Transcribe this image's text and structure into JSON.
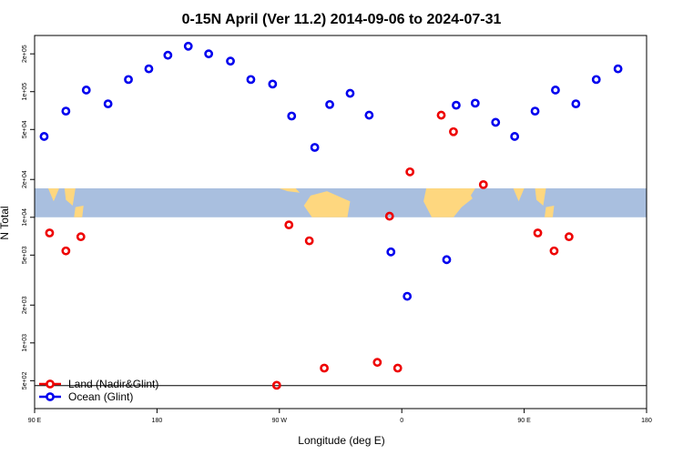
{
  "chart_data": {
    "type": "scatter",
    "title": "0-15N April (Ver 11.2)   2014-09-06 to 2024-07-31",
    "xlabel": "Longitude (deg E)",
    "ylabel": "N Total",
    "x_ticks": [
      {
        "value": 90,
        "label": "90 E"
      },
      {
        "value": 180,
        "label": "180"
      },
      {
        "value": 270,
        "label": "90 W"
      },
      {
        "value": 360,
        "label": "0"
      },
      {
        "value": 450,
        "label": "90 E"
      },
      {
        "value": 540,
        "label": "180"
      }
    ],
    "xlim": [
      90,
      540
    ],
    "y_scale": "log",
    "y_ticks": [
      {
        "value": 500,
        "label": "5e+02"
      },
      {
        "value": 1000,
        "label": "1e+03"
      },
      {
        "value": 2000,
        "label": "2e+03"
      },
      {
        "value": 5000,
        "label": "5e+03"
      },
      {
        "value": 10000,
        "label": "1e+04"
      },
      {
        "value": 20000,
        "label": "2e+04"
      },
      {
        "value": 50000,
        "label": "5e+04"
      },
      {
        "value": 100000,
        "label": "1e+05"
      },
      {
        "value": 200000,
        "label": "2e+05"
      }
    ],
    "ylim": [
      300,
      280000
    ],
    "legend_position": "bottom-left",
    "map_strip": {
      "y_min": 10000,
      "y_max": 17000,
      "ocean_color": "#a9bfdf",
      "land_color": "#fed77f"
    },
    "series": [
      {
        "name": "Land (Nadir&Glint)",
        "color": "#ee0000",
        "points": [
          {
            "x": 101,
            "y": 7500
          },
          {
            "x": 113,
            "y": 5400
          },
          {
            "x": 124,
            "y": 7000
          },
          {
            "x": 277,
            "y": 8700
          },
          {
            "x": 292,
            "y": 6500
          },
          {
            "x": 303,
            "y": 630
          },
          {
            "x": 342,
            "y": 700
          },
          {
            "x": 351,
            "y": 10200
          },
          {
            "x": 357,
            "y": 630
          },
          {
            "x": 366,
            "y": 23000
          },
          {
            "x": 389,
            "y": 65000
          },
          {
            "x": 398,
            "y": 48000
          },
          {
            "x": 420,
            "y": 18200
          },
          {
            "x": 460,
            "y": 7500
          },
          {
            "x": 472,
            "y": 5400
          },
          {
            "x": 483,
            "y": 7000
          },
          {
            "x": 268,
            "y": 460
          }
        ]
      },
      {
        "name": "Ocean (Glint)",
        "color": "#0000ee",
        "points": [
          {
            "x": 97,
            "y": 44000
          },
          {
            "x": 113,
            "y": 70000
          },
          {
            "x": 128,
            "y": 103000
          },
          {
            "x": 144,
            "y": 80000
          },
          {
            "x": 159,
            "y": 125000
          },
          {
            "x": 174,
            "y": 152000
          },
          {
            "x": 188,
            "y": 195000
          },
          {
            "x": 203,
            "y": 230000
          },
          {
            "x": 218,
            "y": 200000
          },
          {
            "x": 234,
            "y": 175000
          },
          {
            "x": 249,
            "y": 125000
          },
          {
            "x": 265,
            "y": 115000
          },
          {
            "x": 279,
            "y": 64000
          },
          {
            "x": 296,
            "y": 36000
          },
          {
            "x": 307,
            "y": 79000
          },
          {
            "x": 322,
            "y": 97000
          },
          {
            "x": 336,
            "y": 65000
          },
          {
            "x": 352,
            "y": 5300
          },
          {
            "x": 364,
            "y": 2350
          },
          {
            "x": 400,
            "y": 78000
          },
          {
            "x": 414,
            "y": 81000
          },
          {
            "x": 429,
            "y": 57000
          },
          {
            "x": 443,
            "y": 44000
          },
          {
            "x": 458,
            "y": 70000
          },
          {
            "x": 473,
            "y": 103000
          },
          {
            "x": 488,
            "y": 80000
          },
          {
            "x": 503,
            "y": 125000
          },
          {
            "x": 519,
            "y": 152000
          },
          {
            "x": 393,
            "y": 4600
          }
        ]
      }
    ]
  }
}
